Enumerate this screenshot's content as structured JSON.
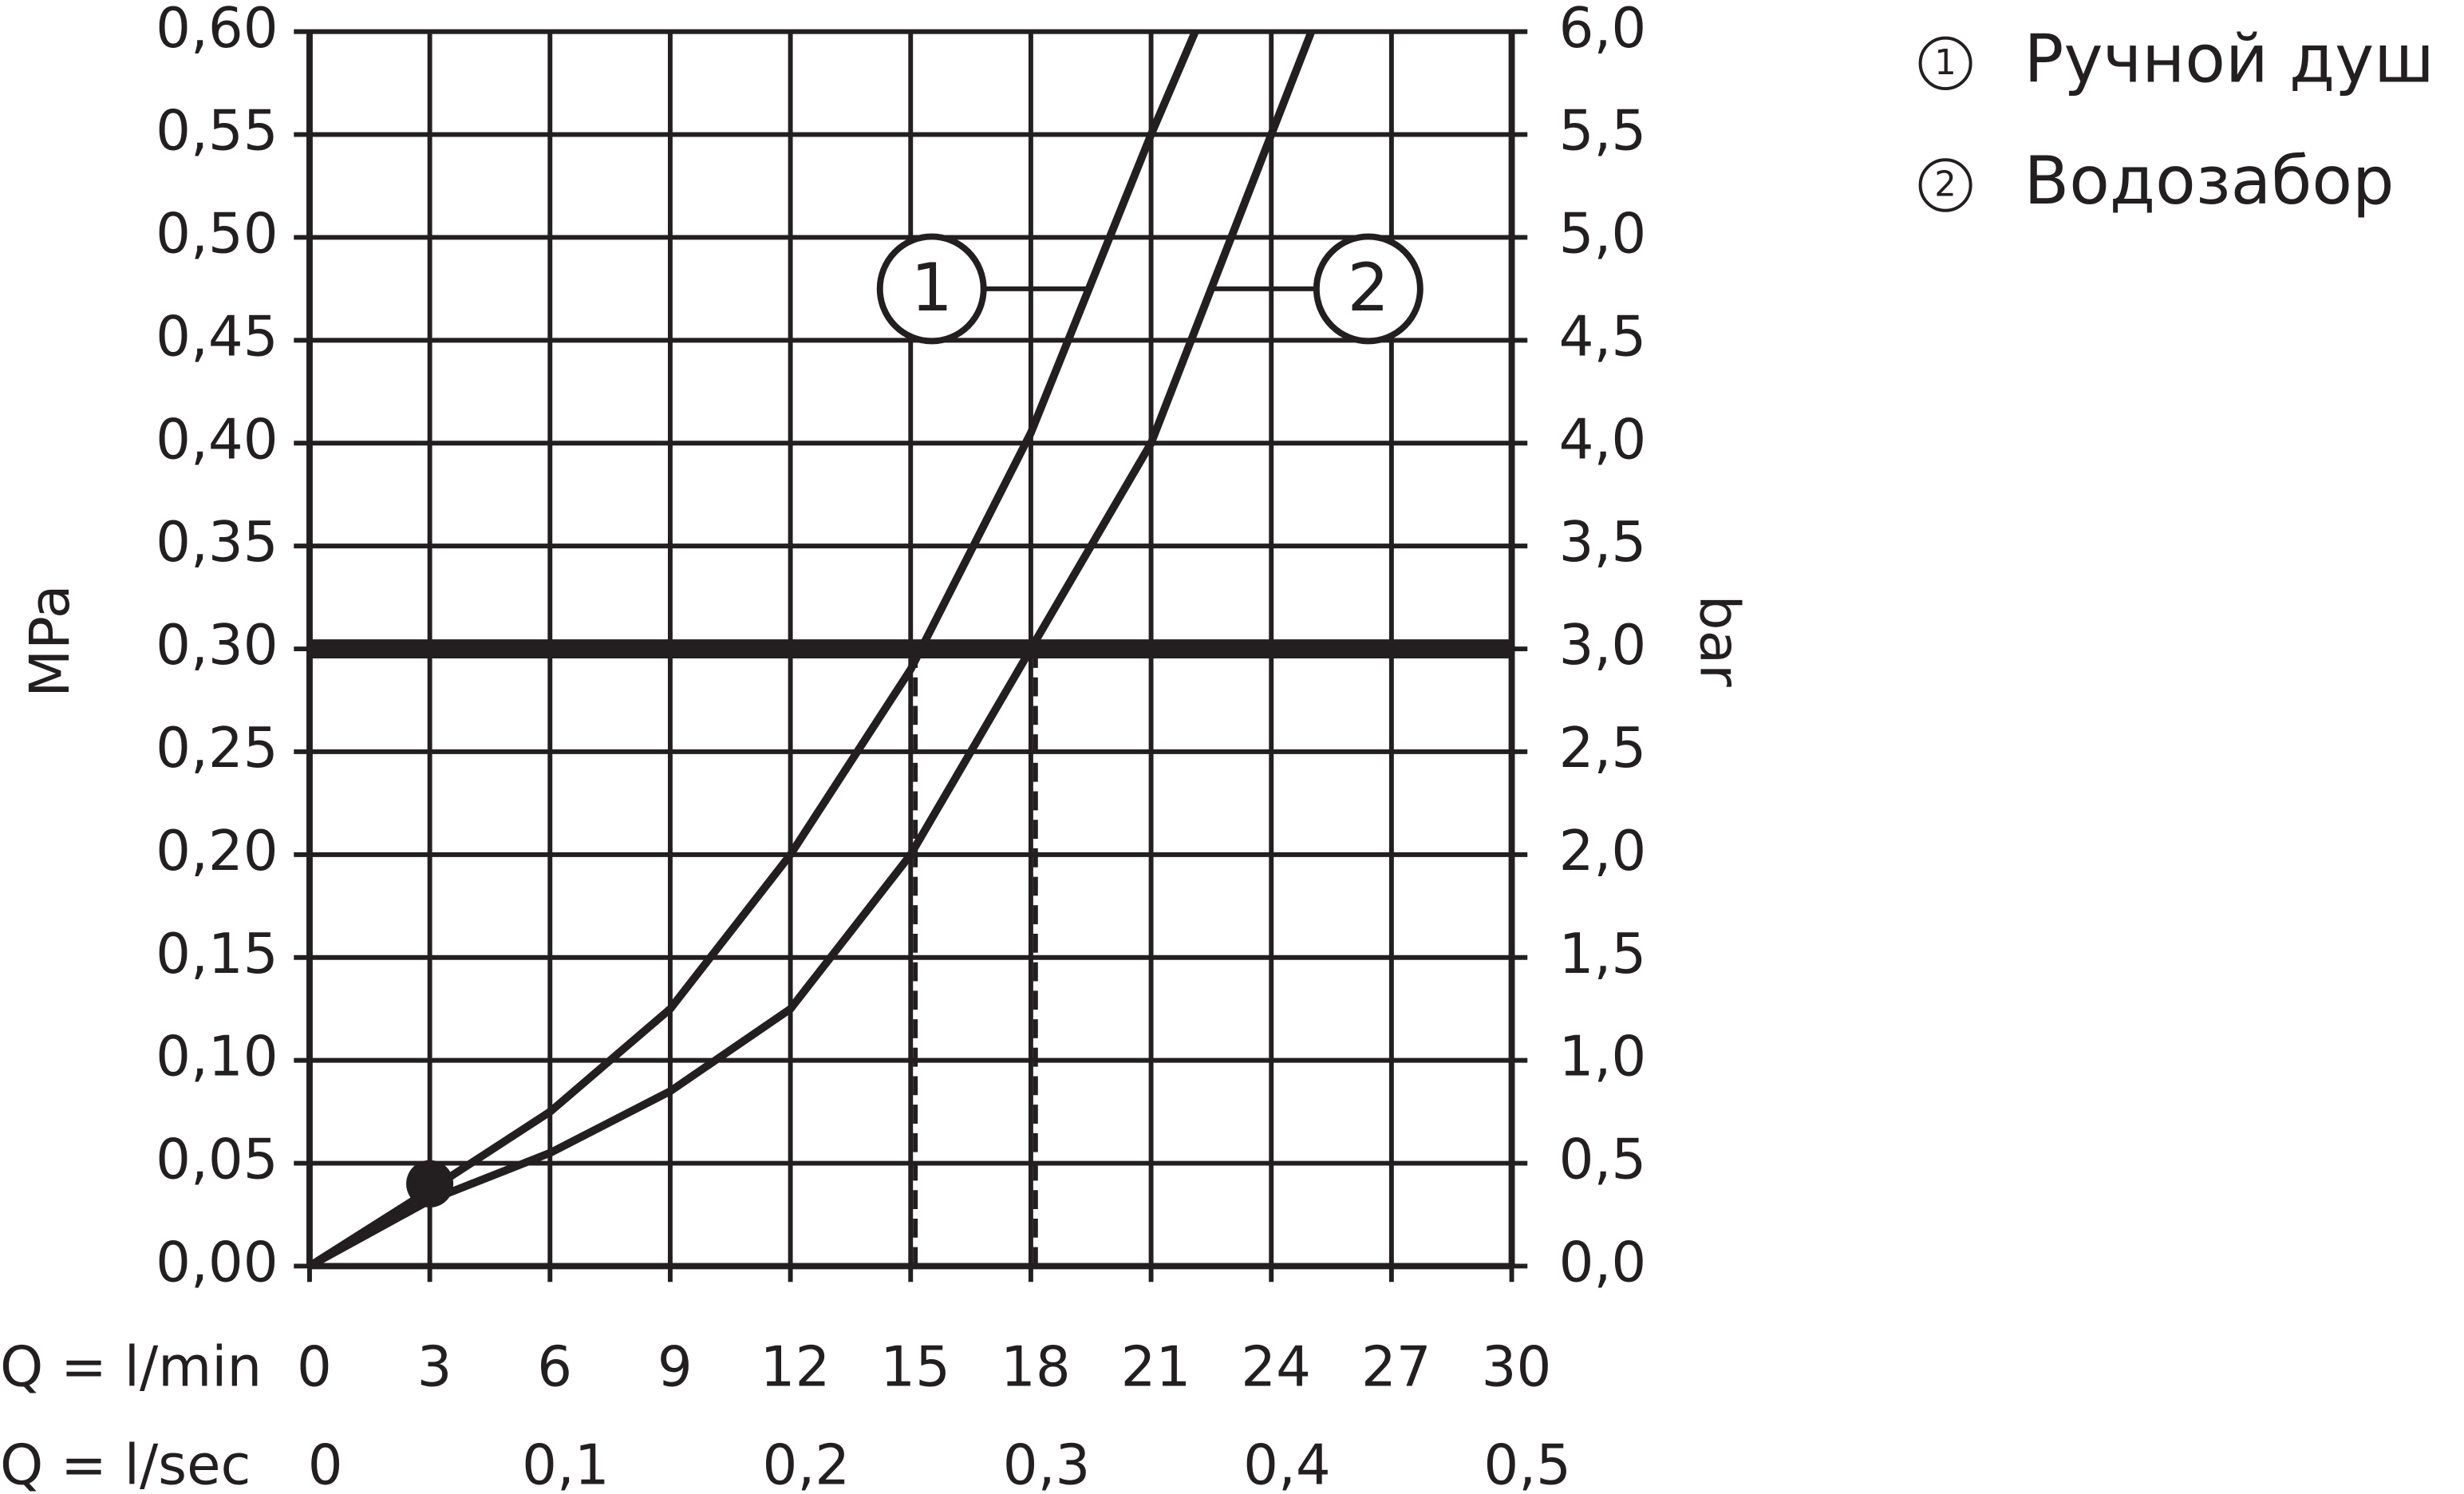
{
  "chart_data": {
    "type": "line",
    "xlabel": "Q = l/min",
    "x2label": "Q = l/sec",
    "ylabel": "MPa",
    "y2label": "bar",
    "xlim": [
      0,
      30
    ],
    "xticks": [
      0,
      3,
      6,
      9,
      12,
      15,
      18,
      21,
      24,
      27,
      30
    ],
    "x2lim": [
      0,
      0.5
    ],
    "x2ticks": [
      {
        "value": 0,
        "label": "0"
      },
      {
        "value": 0.1,
        "label": "0,1"
      },
      {
        "value": 0.2,
        "label": "0,2"
      },
      {
        "value": 0.3,
        "label": "0,3"
      },
      {
        "value": 0.4,
        "label": "0,4"
      },
      {
        "value": 0.5,
        "label": "0,5"
      }
    ],
    "ylim": [
      0,
      0.6
    ],
    "yticks": [
      {
        "value": 0,
        "label": "0,00"
      },
      {
        "value": 0.05,
        "label": "0,05"
      },
      {
        "value": 0.1,
        "label": "0,10"
      },
      {
        "value": 0.15,
        "label": "0,15"
      },
      {
        "value": 0.2,
        "label": "0,20"
      },
      {
        "value": 0.25,
        "label": "0,25"
      },
      {
        "value": 0.3,
        "label": "0,30"
      },
      {
        "value": 0.35,
        "label": "0,35"
      },
      {
        "value": 0.4,
        "label": "0,40"
      },
      {
        "value": 0.45,
        "label": "0,45"
      },
      {
        "value": 0.5,
        "label": "0,50"
      },
      {
        "value": 0.55,
        "label": "0,55"
      },
      {
        "value": 0.6,
        "label": "0,60"
      }
    ],
    "y2lim": [
      0,
      6
    ],
    "y2ticks": [
      {
        "value": 0,
        "label": "0,0"
      },
      {
        "value": 0.5,
        "label": "0,5"
      },
      {
        "value": 1,
        "label": "1,0"
      },
      {
        "value": 1.5,
        "label": "1,5"
      },
      {
        "value": 2,
        "label": "2,0"
      },
      {
        "value": 2.5,
        "label": "2,5"
      },
      {
        "value": 3,
        "label": "3,0"
      },
      {
        "value": 3.5,
        "label": "3,5"
      },
      {
        "value": 4,
        "label": "4,0"
      },
      {
        "value": 4.5,
        "label": "4,5"
      },
      {
        "value": 5,
        "label": "5,0"
      },
      {
        "value": 5.5,
        "label": "5,5"
      },
      {
        "value": 6,
        "label": "6,0"
      }
    ],
    "grid": true,
    "hline": 0.3,
    "vlines": [
      15,
      18
    ],
    "point": {
      "x": 3,
      "y": 0.04
    },
    "series": [
      {
        "name": "Ручной душ",
        "label": "1",
        "color": "#231f20",
        "x": [
          0,
          3,
          6,
          9,
          12,
          15,
          18,
          21,
          22.1
        ],
        "values": [
          0,
          0.037,
          0.075,
          0.125,
          0.2,
          0.29,
          0.405,
          0.55,
          0.6
        ]
      },
      {
        "name": "Водозабор",
        "label": "2",
        "color": "#231f20",
        "x": [
          0,
          3,
          6,
          9,
          12,
          15,
          18,
          21,
          24,
          25
        ],
        "values": [
          0,
          0.032,
          0.055,
          0.085,
          0.125,
          0.2,
          0.3,
          0.4,
          0.55,
          0.6
        ]
      }
    ]
  }
}
